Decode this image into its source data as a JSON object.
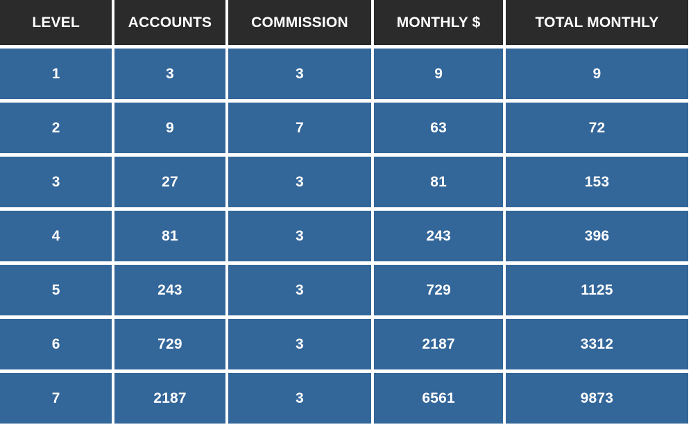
{
  "table": {
    "headers": [
      "LEVEL",
      "ACCOUNTS",
      "COMMISSION",
      "MONTHLY $",
      "TOTAL MONTHLY"
    ],
    "rows": [
      [
        "1",
        "3",
        "3",
        "9",
        "9"
      ],
      [
        "2",
        "9",
        "7",
        "63",
        "72"
      ],
      [
        "3",
        "27",
        "3",
        "81",
        "153"
      ],
      [
        "4",
        "81",
        "3",
        "243",
        "396"
      ],
      [
        "5",
        "243",
        "3",
        "729",
        "1125"
      ],
      [
        "6",
        "729",
        "3",
        "2187",
        "3312"
      ],
      [
        "7",
        "2187",
        "3",
        "6561",
        "9873"
      ]
    ]
  },
  "colors": {
    "header_bg": "#2b2b2b",
    "cell_bg": "#336699",
    "text": "#ffffff",
    "gridline": "#ffffff"
  }
}
